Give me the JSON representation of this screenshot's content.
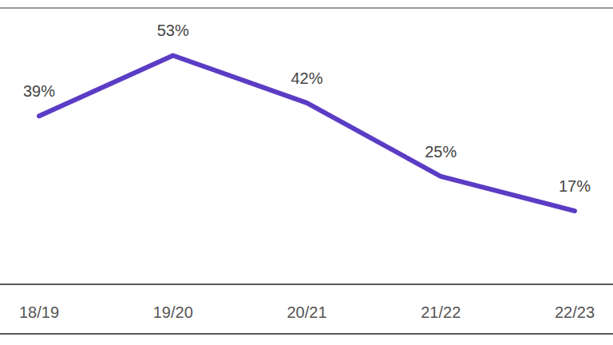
{
  "chart_data": {
    "type": "line",
    "categories": [
      "18/19",
      "19/20",
      "20/21",
      "21/22",
      "22/23"
    ],
    "values": [
      39,
      53,
      42,
      25,
      17
    ],
    "value_labels": [
      "39%",
      "53%",
      "42%",
      "25%",
      "17%"
    ],
    "color": "#5b3cc4",
    "ylim": [
      0,
      64
    ],
    "grid": false,
    "data_labels": true,
    "tick_labels": "x"
  }
}
